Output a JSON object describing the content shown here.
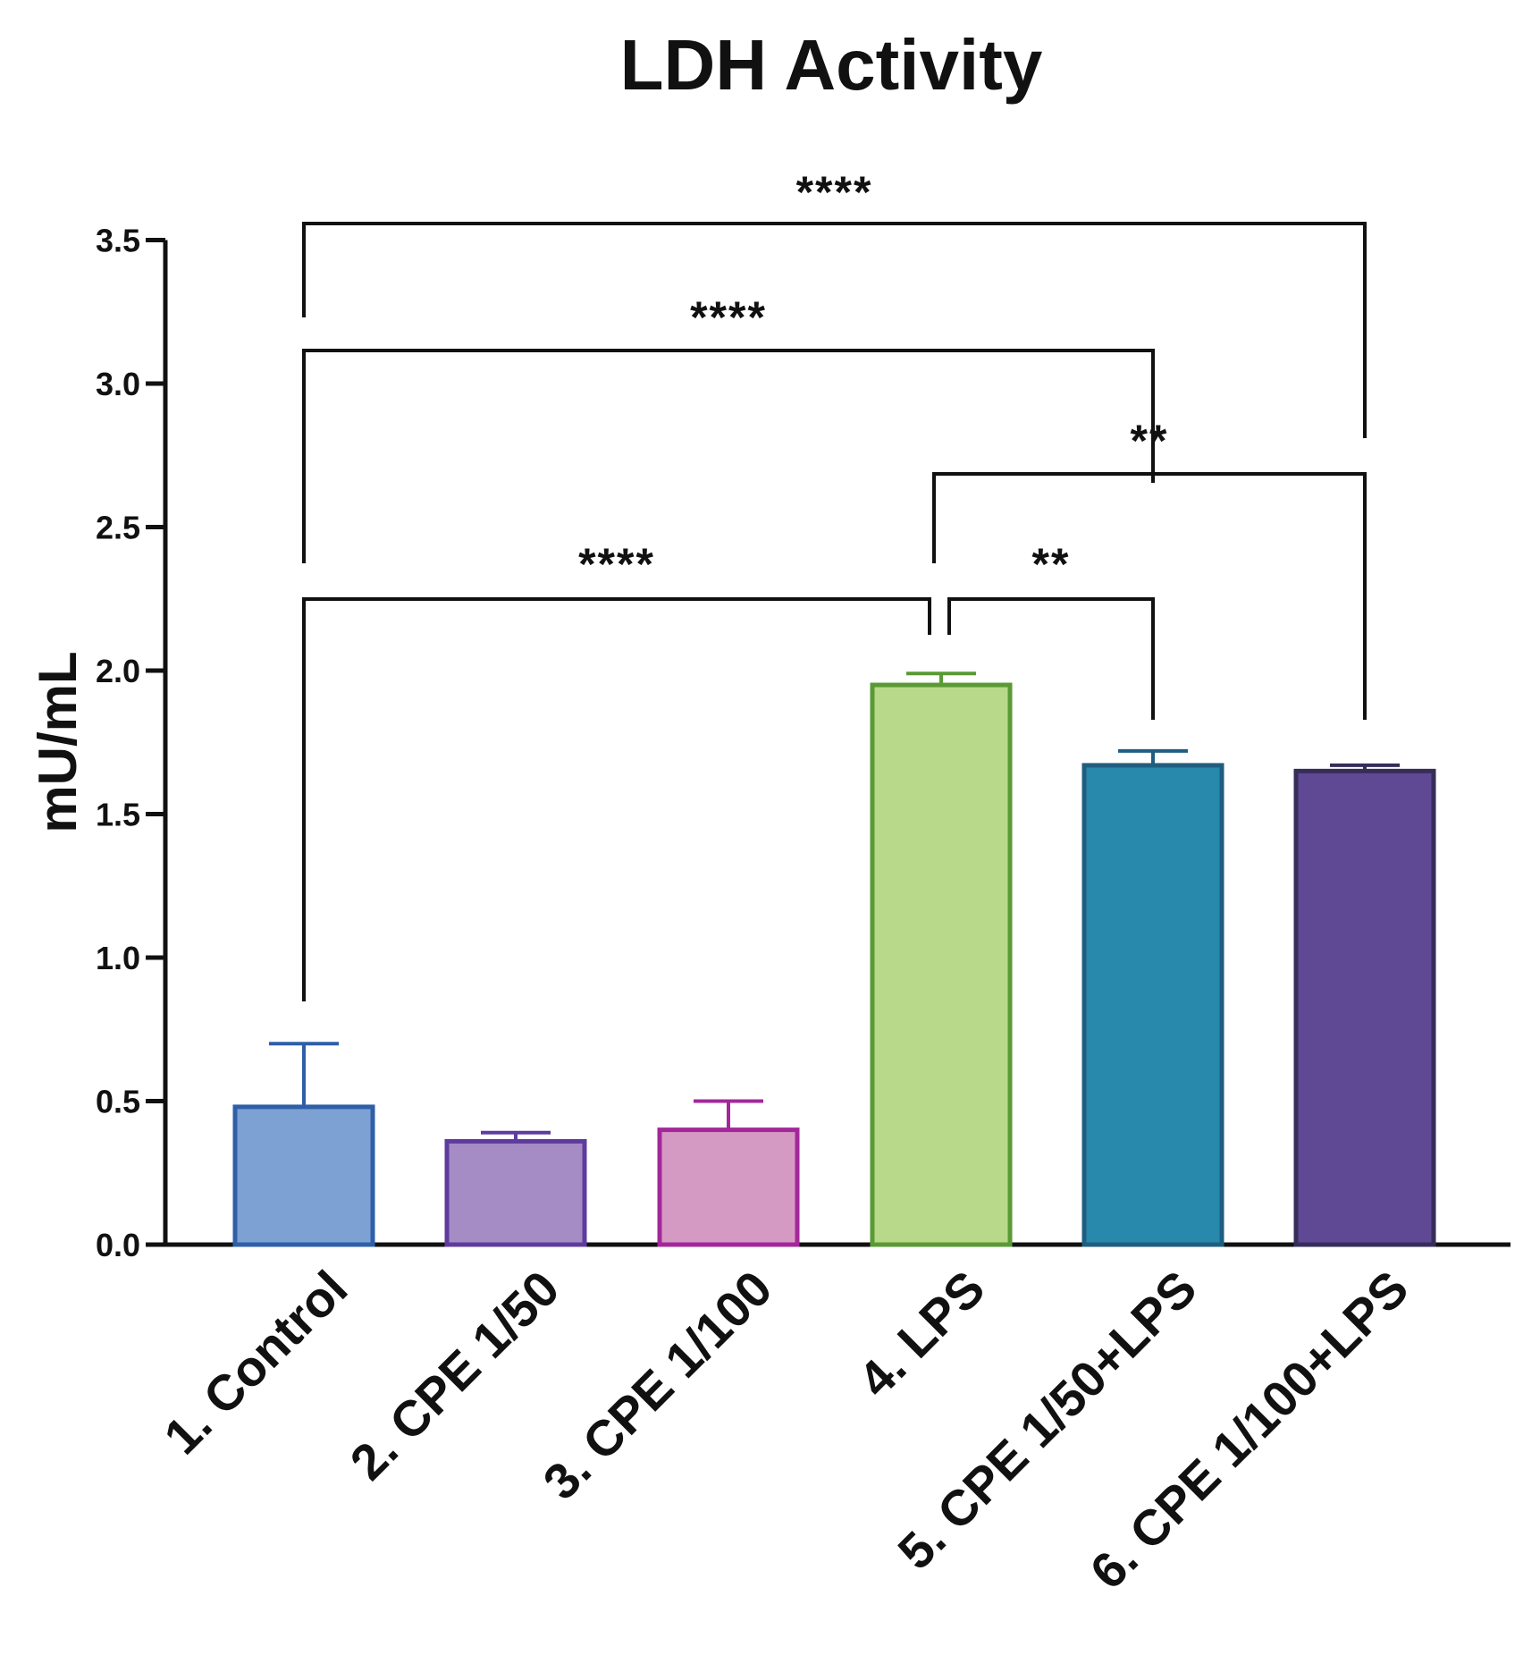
{
  "chart_data": {
    "type": "bar",
    "title": "LDH Activity",
    "xlabel": "",
    "ylabel": "mU/mL",
    "ylim": [
      0,
      3.5
    ],
    "yticks": [
      "0.0",
      "0.5",
      "1.0",
      "1.5",
      "2.0",
      "2.5",
      "3.0",
      "3.5"
    ],
    "grid": false,
    "categories": [
      "1. Control",
      "2. CPE 1/50",
      "3. CPE 1/100",
      "4. LPS",
      "5. CPE 1/50+LPS",
      "6. CPE 1/100+LPS"
    ],
    "values": [
      0.48,
      0.36,
      0.4,
      1.95,
      1.67,
      1.65
    ],
    "errors": [
      0.22,
      0.03,
      0.1,
      0.04,
      0.05,
      0.02
    ],
    "bar_fill_colors": [
      "#7ea1d4",
      "#a68cc4",
      "#d59ac3",
      "#b8d98a",
      "#2989ad",
      "#5f4995"
    ],
    "bar_edge_colors": [
      "#2e5fa8",
      "#5e3c9e",
      "#a3279b",
      "#5a9a35",
      "#1f5e80",
      "#362d59"
    ],
    "significance": [
      {
        "from": 1,
        "to": 6,
        "label": "****"
      },
      {
        "from": 1,
        "to": 5,
        "label": "****"
      },
      {
        "from": 4,
        "to": 6,
        "label": "**"
      },
      {
        "from": 1,
        "to": 4,
        "label": "****"
      },
      {
        "from": 4,
        "to": 5,
        "label": "**"
      }
    ]
  }
}
